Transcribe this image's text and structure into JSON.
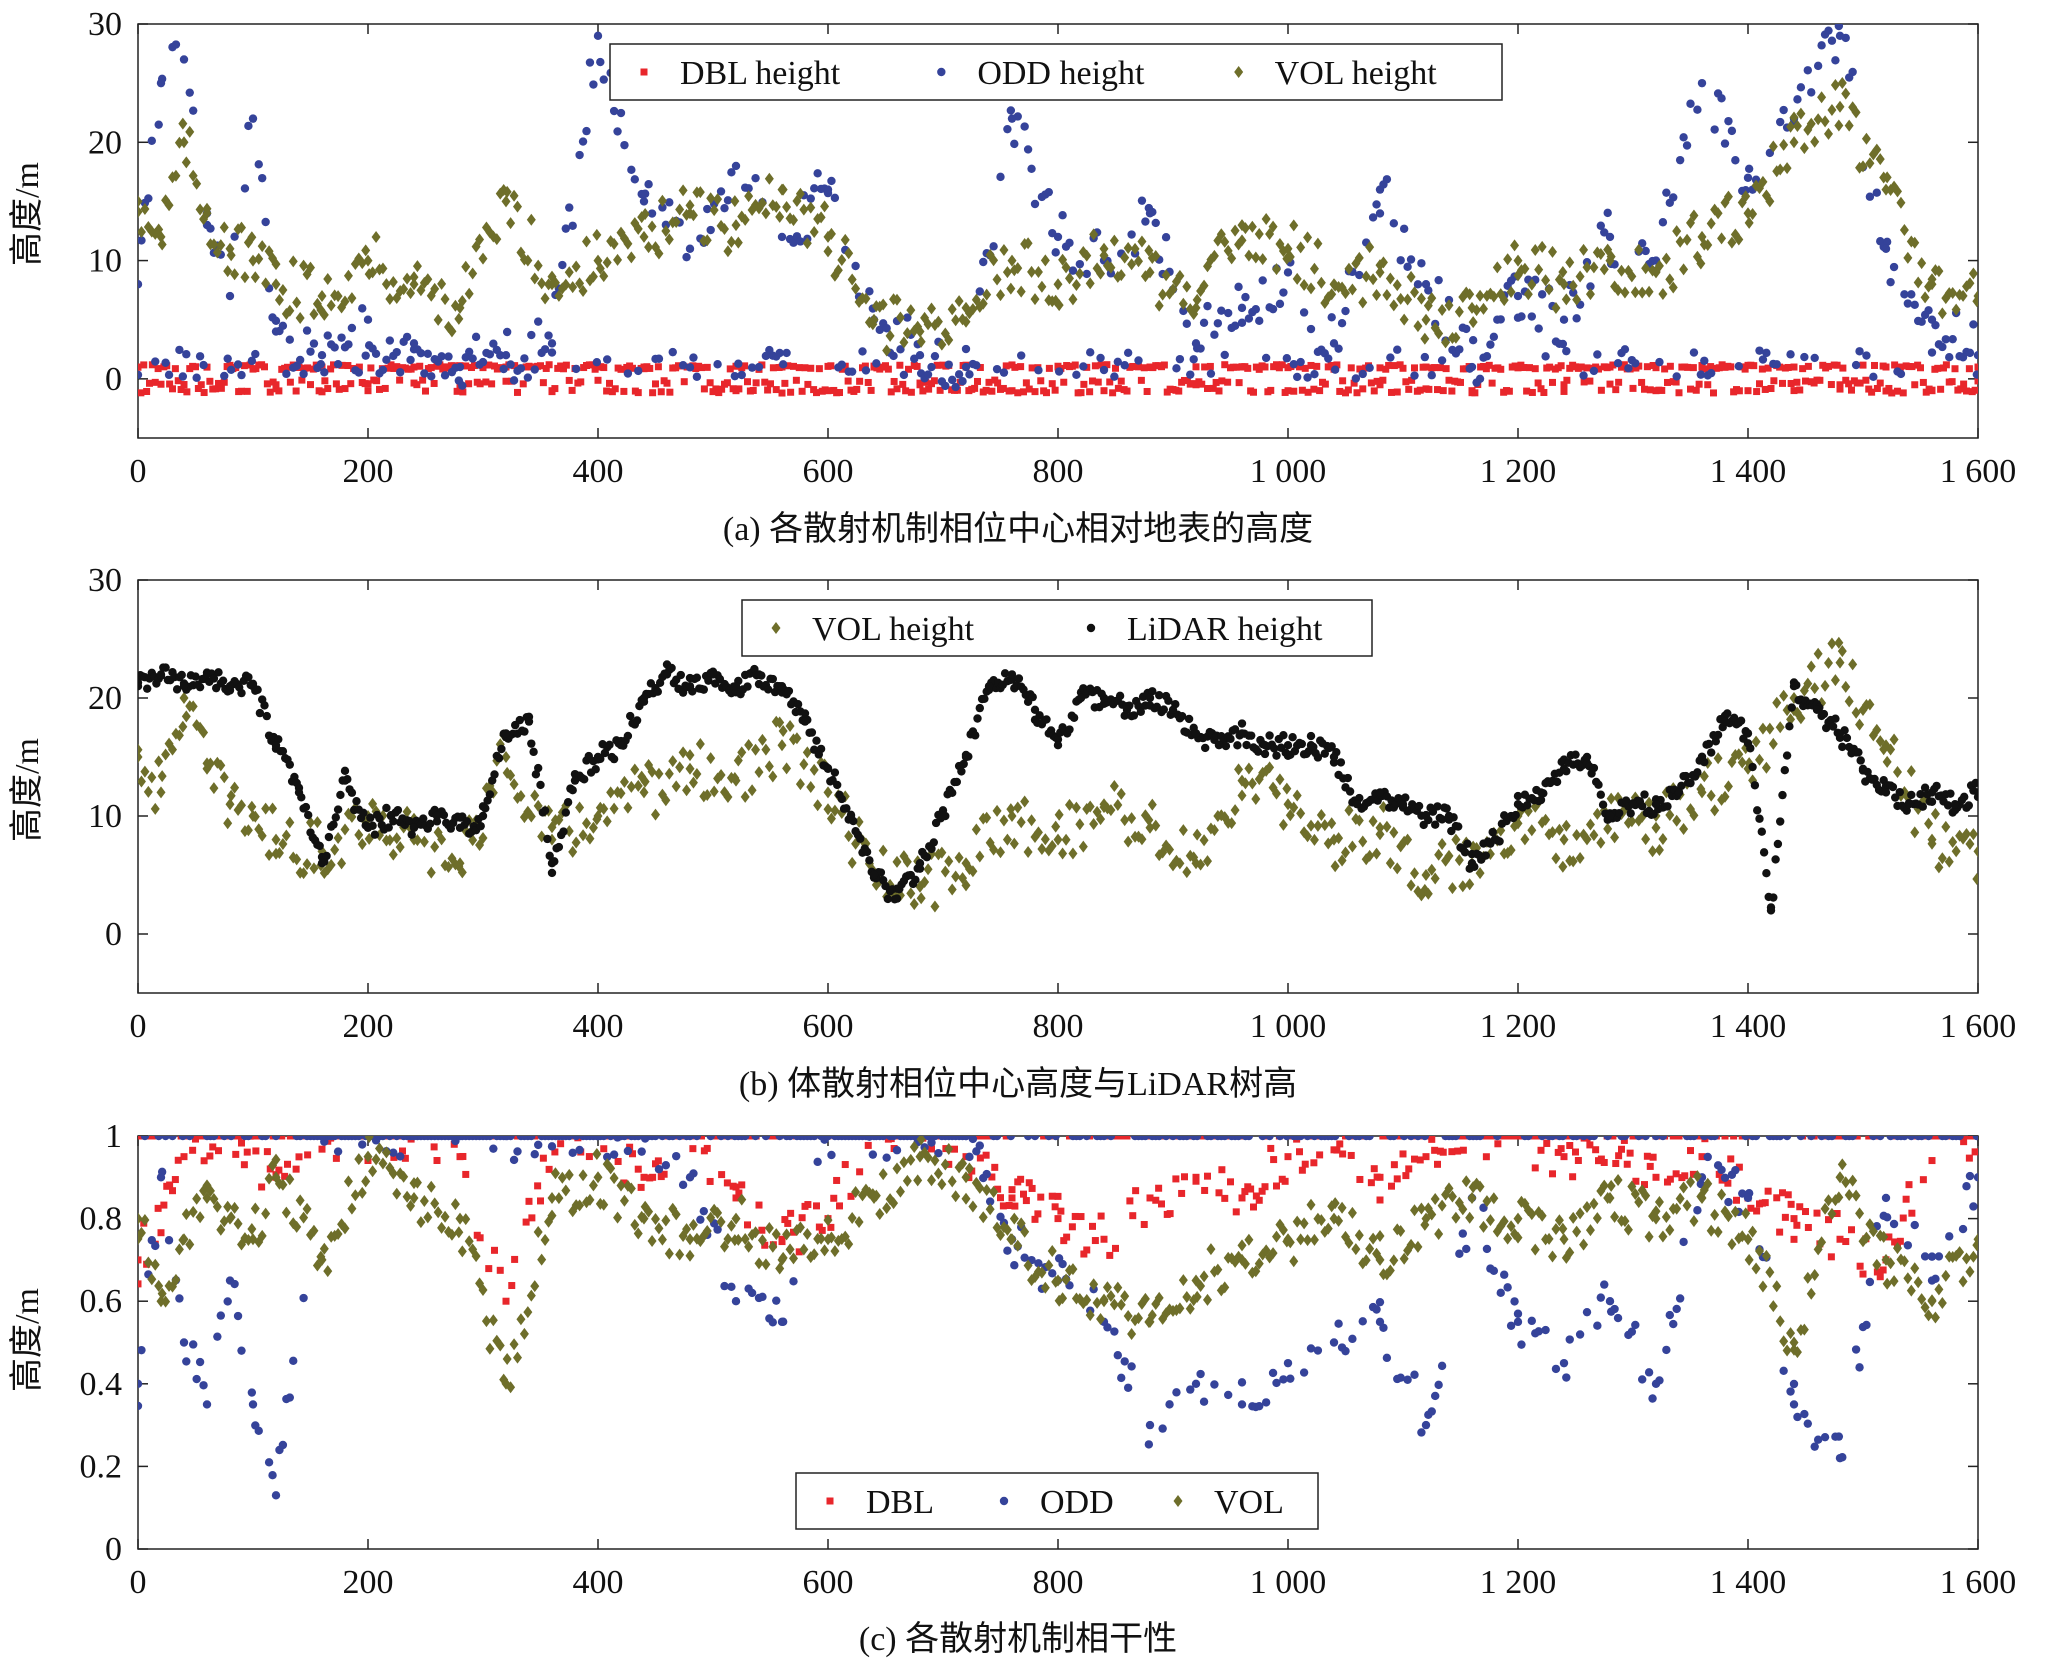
{
  "colors": {
    "dbl": "#e8262b",
    "odd": "#35439a",
    "vol": "#6e6e2a",
    "lidar": "#111111",
    "axis": "#222222"
  },
  "chart_data": [
    {
      "type": "scatter",
      "id": "a",
      "caption": "(a) 各散射机制相位中心相对地表的高度",
      "ylabel": "高度/m",
      "xlim": [
        0,
        1600
      ],
      "ylim": [
        -5,
        30
      ],
      "xticks": [
        0,
        200,
        400,
        600,
        800,
        1000,
        1200,
        1400,
        1600
      ],
      "xtick_labels": [
        "0",
        "200",
        "400",
        "600",
        "800",
        "1 000",
        "1 200",
        "1 400",
        "1 600"
      ],
      "yticks": [
        0,
        10,
        20,
        30
      ],
      "ytick_labels": [
        "0",
        "10",
        "20",
        "30"
      ],
      "legend": {
        "placement": "top-center",
        "entries": [
          "DBL height",
          "ODD height",
          "VOL height"
        ]
      },
      "series": [
        {
          "name": "DBL height",
          "marker": "square",
          "color_key": "dbl",
          "x": [
            0,
            40,
            80,
            120,
            160,
            200,
            240,
            280,
            320,
            360,
            400,
            440,
            480,
            520,
            560,
            600,
            640,
            680,
            720,
            760,
            800,
            840,
            880,
            920,
            960,
            1000,
            1040,
            1080,
            1120,
            1160,
            1200,
            1240,
            1280,
            1320,
            1360,
            1400,
            1440,
            1480,
            1520,
            1560,
            1600
          ],
          "y": [
            1,
            -0.5,
            1,
            -0.5,
            1,
            -1,
            1,
            -0.5,
            1,
            -1,
            1,
            1,
            1,
            -1,
            1,
            -1,
            1,
            -0.5,
            1,
            -1,
            1,
            -1,
            1,
            -0.5,
            1,
            -1,
            1,
            -0.5,
            1,
            -1,
            1,
            -0.5,
            1,
            -1,
            1,
            -1,
            1,
            -0.5,
            1,
            -1,
            1
          ]
        },
        {
          "name": "ODD height",
          "marker": "circle",
          "color_key": "odd",
          "x": [
            0,
            20,
            40,
            60,
            80,
            100,
            120,
            160,
            200,
            240,
            280,
            320,
            360,
            400,
            440,
            480,
            520,
            560,
            600,
            640,
            680,
            720,
            760,
            800,
            840,
            880,
            920,
            960,
            1000,
            1040,
            1080,
            1120,
            1160,
            1200,
            1240,
            1280,
            1320,
            1360,
            1400,
            1440,
            1480,
            1520,
            1560,
            1600
          ],
          "y": [
            8,
            25,
            27,
            14,
            7,
            22,
            4,
            2,
            5,
            3,
            1,
            2,
            3,
            29,
            15,
            11,
            18,
            12,
            16,
            5,
            2,
            1,
            22,
            12,
            10,
            14,
            3,
            6,
            9,
            3,
            16,
            8,
            1,
            7,
            5,
            12,
            10,
            25,
            17,
            22,
            29,
            11,
            5,
            2
          ]
        },
        {
          "name": "VOL height",
          "marker": "diamond",
          "color_key": "vol",
          "x": [
            0,
            20,
            40,
            60,
            80,
            100,
            120,
            160,
            200,
            240,
            280,
            320,
            360,
            400,
            440,
            480,
            520,
            560,
            600,
            640,
            680,
            720,
            760,
            800,
            840,
            880,
            920,
            960,
            1000,
            1040,
            1080,
            1120,
            1160,
            1200,
            1240,
            1280,
            1320,
            1360,
            1400,
            1440,
            1480,
            1520,
            1560,
            1600
          ],
          "y": [
            15,
            12,
            20,
            14,
            11,
            10,
            8,
            7,
            10,
            8,
            6,
            15,
            8,
            10,
            12,
            14,
            13,
            16,
            12,
            5,
            4,
            6,
            10,
            8,
            11,
            9,
            6,
            13,
            11,
            8,
            9,
            5,
            6,
            10,
            8,
            10,
            9,
            12,
            14,
            20,
            23,
            16,
            8,
            7
          ]
        }
      ]
    },
    {
      "type": "scatter",
      "id": "b",
      "caption": "(b) 体散射相位中心高度与LiDAR树高",
      "ylabel": "高度/m",
      "xlim": [
        0,
        1600
      ],
      "ylim": [
        -5,
        30
      ],
      "xticks": [
        0,
        200,
        400,
        600,
        800,
        1000,
        1200,
        1400,
        1600
      ],
      "xtick_labels": [
        "0",
        "200",
        "400",
        "600",
        "800",
        "1 000",
        "1 200",
        "1 400",
        "1 600"
      ],
      "yticks": [
        0,
        10,
        20,
        30
      ],
      "ytick_labels": [
        "0",
        "10",
        "20",
        "30"
      ],
      "legend": {
        "placement": "top-center",
        "entries": [
          "VOL height",
          "LiDAR height"
        ]
      },
      "series": [
        {
          "name": "VOL height",
          "marker": "diamond",
          "color_key": "vol",
          "x": [
            0,
            20,
            40,
            60,
            80,
            100,
            120,
            160,
            200,
            240,
            280,
            320,
            360,
            400,
            440,
            480,
            520,
            560,
            600,
            640,
            680,
            720,
            760,
            800,
            840,
            880,
            920,
            960,
            1000,
            1040,
            1080,
            1120,
            1160,
            1200,
            1240,
            1280,
            1320,
            1360,
            1400,
            1440,
            1480,
            1520,
            1560,
            1600
          ],
          "y": [
            15,
            12,
            20,
            14,
            11,
            10,
            8,
            7,
            10,
            8,
            6,
            15,
            8,
            10,
            12,
            14,
            13,
            16,
            12,
            5,
            4,
            6,
            10,
            8,
            11,
            9,
            6,
            13,
            11,
            8,
            9,
            5,
            6,
            10,
            8,
            10,
            9,
            12,
            14,
            20,
            23,
            16,
            8,
            7
          ]
        },
        {
          "name": "LiDAR height",
          "marker": "circle",
          "color_key": "lidar",
          "x": [
            0,
            20,
            40,
            60,
            80,
            100,
            120,
            140,
            160,
            180,
            200,
            220,
            240,
            260,
            280,
            300,
            320,
            340,
            360,
            380,
            400,
            420,
            440,
            460,
            480,
            500,
            520,
            540,
            560,
            580,
            600,
            620,
            640,
            660,
            680,
            700,
            720,
            740,
            760,
            780,
            800,
            820,
            840,
            860,
            880,
            900,
            920,
            940,
            960,
            980,
            1000,
            1020,
            1040,
            1060,
            1080,
            1100,
            1120,
            1140,
            1160,
            1180,
            1200,
            1220,
            1240,
            1260,
            1280,
            1300,
            1320,
            1340,
            1360,
            1380,
            1400,
            1420,
            1440,
            1460,
            1480,
            1500,
            1520,
            1540,
            1560,
            1580,
            1600
          ],
          "y": [
            21,
            22,
            21,
            22,
            21,
            21,
            16,
            12,
            6,
            13,
            9,
            10,
            9,
            10,
            9,
            10,
            17,
            18,
            6,
            13,
            15,
            16,
            20,
            22,
            21,
            22,
            21,
            22,
            21,
            18,
            14,
            10,
            5,
            3,
            6,
            10,
            15,
            21,
            22,
            19,
            16,
            20,
            20,
            19,
            20,
            19,
            17,
            16,
            17,
            16,
            16,
            16,
            15,
            11,
            12,
            11,
            10,
            10,
            6,
            8,
            11,
            12,
            14,
            15,
            10,
            11,
            11,
            12,
            15,
            18,
            17,
            2,
            21,
            19,
            17,
            14,
            12,
            11,
            12,
            11,
            12
          ]
        }
      ]
    },
    {
      "type": "scatter",
      "id": "c",
      "caption": "(c) 各散射机制相干性",
      "ylabel": "高度/m",
      "xlim": [
        0,
        1600
      ],
      "ylim": [
        0,
        1
      ],
      "xticks": [
        0,
        200,
        400,
        600,
        800,
        1000,
        1200,
        1400,
        1600
      ],
      "xtick_labels": [
        "0",
        "200",
        "400",
        "600",
        "800",
        "1 000",
        "1 200",
        "1 400",
        "1 600"
      ],
      "yticks": [
        0,
        0.2,
        0.4,
        0.6,
        0.8,
        1
      ],
      "ytick_labels": [
        "0",
        "0.2",
        "0.4",
        "0.6",
        "0.8",
        "1"
      ],
      "legend": {
        "placement": "bottom-center",
        "entries": [
          "DBL",
          "ODD",
          "VOL"
        ]
      },
      "series": [
        {
          "name": "DBL",
          "marker": "square",
          "color_key": "dbl",
          "x": [
            0,
            40,
            80,
            120,
            160,
            200,
            240,
            280,
            320,
            360,
            400,
            440,
            480,
            520,
            560,
            600,
            640,
            680,
            720,
            760,
            800,
            840,
            880,
            920,
            960,
            1000,
            1040,
            1080,
            1120,
            1160,
            1200,
            1240,
            1280,
            1320,
            1360,
            1400,
            1440,
            1480,
            1520,
            1560,
            1600
          ],
          "y": [
            0.7,
            0.95,
            1,
            0.9,
            1,
            1,
            1,
            0.95,
            0.6,
            1,
            1,
            0.9,
            1,
            0.85,
            0.75,
            0.8,
            1,
            1,
            0.95,
            0.85,
            0.8,
            0.75,
            0.85,
            0.9,
            0.85,
            0.95,
            1,
            0.9,
            0.95,
            1,
            1,
            0.95,
            1,
            0.9,
            0.95,
            0.85,
            0.8,
            0.75,
            0.7,
            1,
            1
          ]
        },
        {
          "name": "ODD",
          "marker": "circle",
          "color_key": "odd",
          "x": [
            0,
            20,
            40,
            60,
            80,
            100,
            120,
            160,
            200,
            240,
            280,
            320,
            360,
            400,
            440,
            480,
            520,
            560,
            600,
            640,
            680,
            720,
            760,
            800,
            840,
            880,
            920,
            960,
            1000,
            1040,
            1080,
            1120,
            1160,
            1200,
            1240,
            1280,
            1320,
            1360,
            1400,
            1440,
            1480,
            1520,
            1560,
            1600
          ],
          "y": [
            0.4,
            0.9,
            0.5,
            0.35,
            0.65,
            0.35,
            0.13,
            1,
            1,
            1,
            1,
            1,
            1,
            1,
            1,
            0.9,
            0.6,
            0.55,
            1,
            1,
            1,
            1,
            0.75,
            0.65,
            0.55,
            0.3,
            0.4,
            0.35,
            0.45,
            0.5,
            0.55,
            0.3,
            0.85,
            0.55,
            0.45,
            0.6,
            0.4,
            0.9,
            0.85,
            0.35,
            0.22,
            0.85,
            0.65,
            0.9
          ]
        },
        {
          "name": "VOL",
          "marker": "diamond",
          "color_key": "vol",
          "x": [
            0,
            20,
            40,
            60,
            80,
            100,
            120,
            160,
            200,
            240,
            280,
            320,
            360,
            400,
            440,
            480,
            520,
            560,
            600,
            640,
            680,
            720,
            760,
            800,
            840,
            880,
            920,
            960,
            1000,
            1040,
            1080,
            1120,
            1160,
            1200,
            1240,
            1280,
            1320,
            1360,
            1400,
            1440,
            1480,
            1520,
            1560,
            1600
          ],
          "y": [
            0.8,
            0.6,
            0.75,
            0.85,
            0.8,
            0.75,
            0.9,
            0.7,
            0.95,
            0.85,
            0.8,
            0.4,
            0.85,
            0.9,
            0.8,
            0.75,
            0.8,
            0.7,
            0.75,
            0.85,
            0.95,
            0.9,
            0.75,
            0.65,
            0.6,
            0.55,
            0.65,
            0.7,
            0.75,
            0.8,
            0.7,
            0.8,
            0.85,
            0.8,
            0.75,
            0.85,
            0.8,
            0.85,
            0.75,
            0.5,
            0.9,
            0.7,
            0.6,
            0.75
          ]
        }
      ]
    }
  ]
}
